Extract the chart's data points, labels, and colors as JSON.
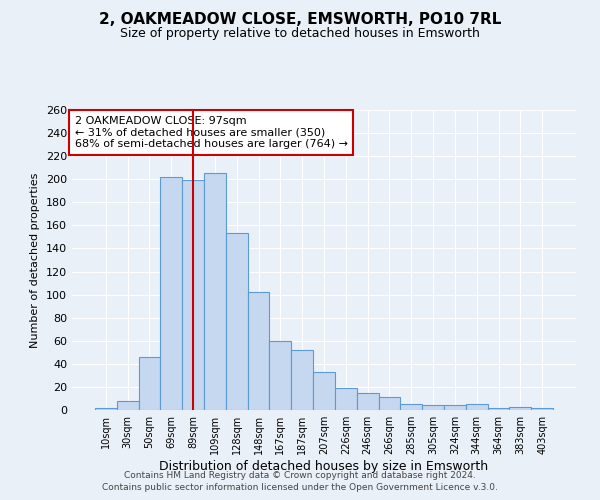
{
  "title": "2, OAKMEADOW CLOSE, EMSWORTH, PO10 7RL",
  "subtitle": "Size of property relative to detached houses in Emsworth",
  "xlabel": "Distribution of detached houses by size in Emsworth",
  "ylabel": "Number of detached properties",
  "bar_labels": [
    "10sqm",
    "30sqm",
    "50sqm",
    "69sqm",
    "89sqm",
    "109sqm",
    "128sqm",
    "148sqm",
    "167sqm",
    "187sqm",
    "207sqm",
    "226sqm",
    "246sqm",
    "266sqm",
    "285sqm",
    "305sqm",
    "324sqm",
    "344sqm",
    "364sqm",
    "383sqm",
    "403sqm"
  ],
  "bar_values": [
    2,
    8,
    46,
    202,
    199,
    205,
    153,
    102,
    60,
    52,
    33,
    19,
    15,
    11,
    5,
    4,
    4,
    5,
    2,
    3,
    2
  ],
  "bar_color": "#c5d8f0",
  "bar_edge_color": "#5b9bd5",
  "background_color": "#eaf0f8",
  "grid_color": "#ffffff",
  "vline_x_index": 4.5,
  "vline_color": "#cc0000",
  "annotation_text": "2 OAKMEADOW CLOSE: 97sqm\n← 31% of detached houses are smaller (350)\n68% of semi-detached houses are larger (764) →",
  "annotation_box_edgecolor": "#cc0000",
  "ylim": [
    0,
    260
  ],
  "yticks": [
    0,
    20,
    40,
    60,
    80,
    100,
    120,
    140,
    160,
    180,
    200,
    220,
    240,
    260
  ],
  "footer_line1": "Contains HM Land Registry data © Crown copyright and database right 2024.",
  "footer_line2": "Contains public sector information licensed under the Open Government Licence v.3.0."
}
